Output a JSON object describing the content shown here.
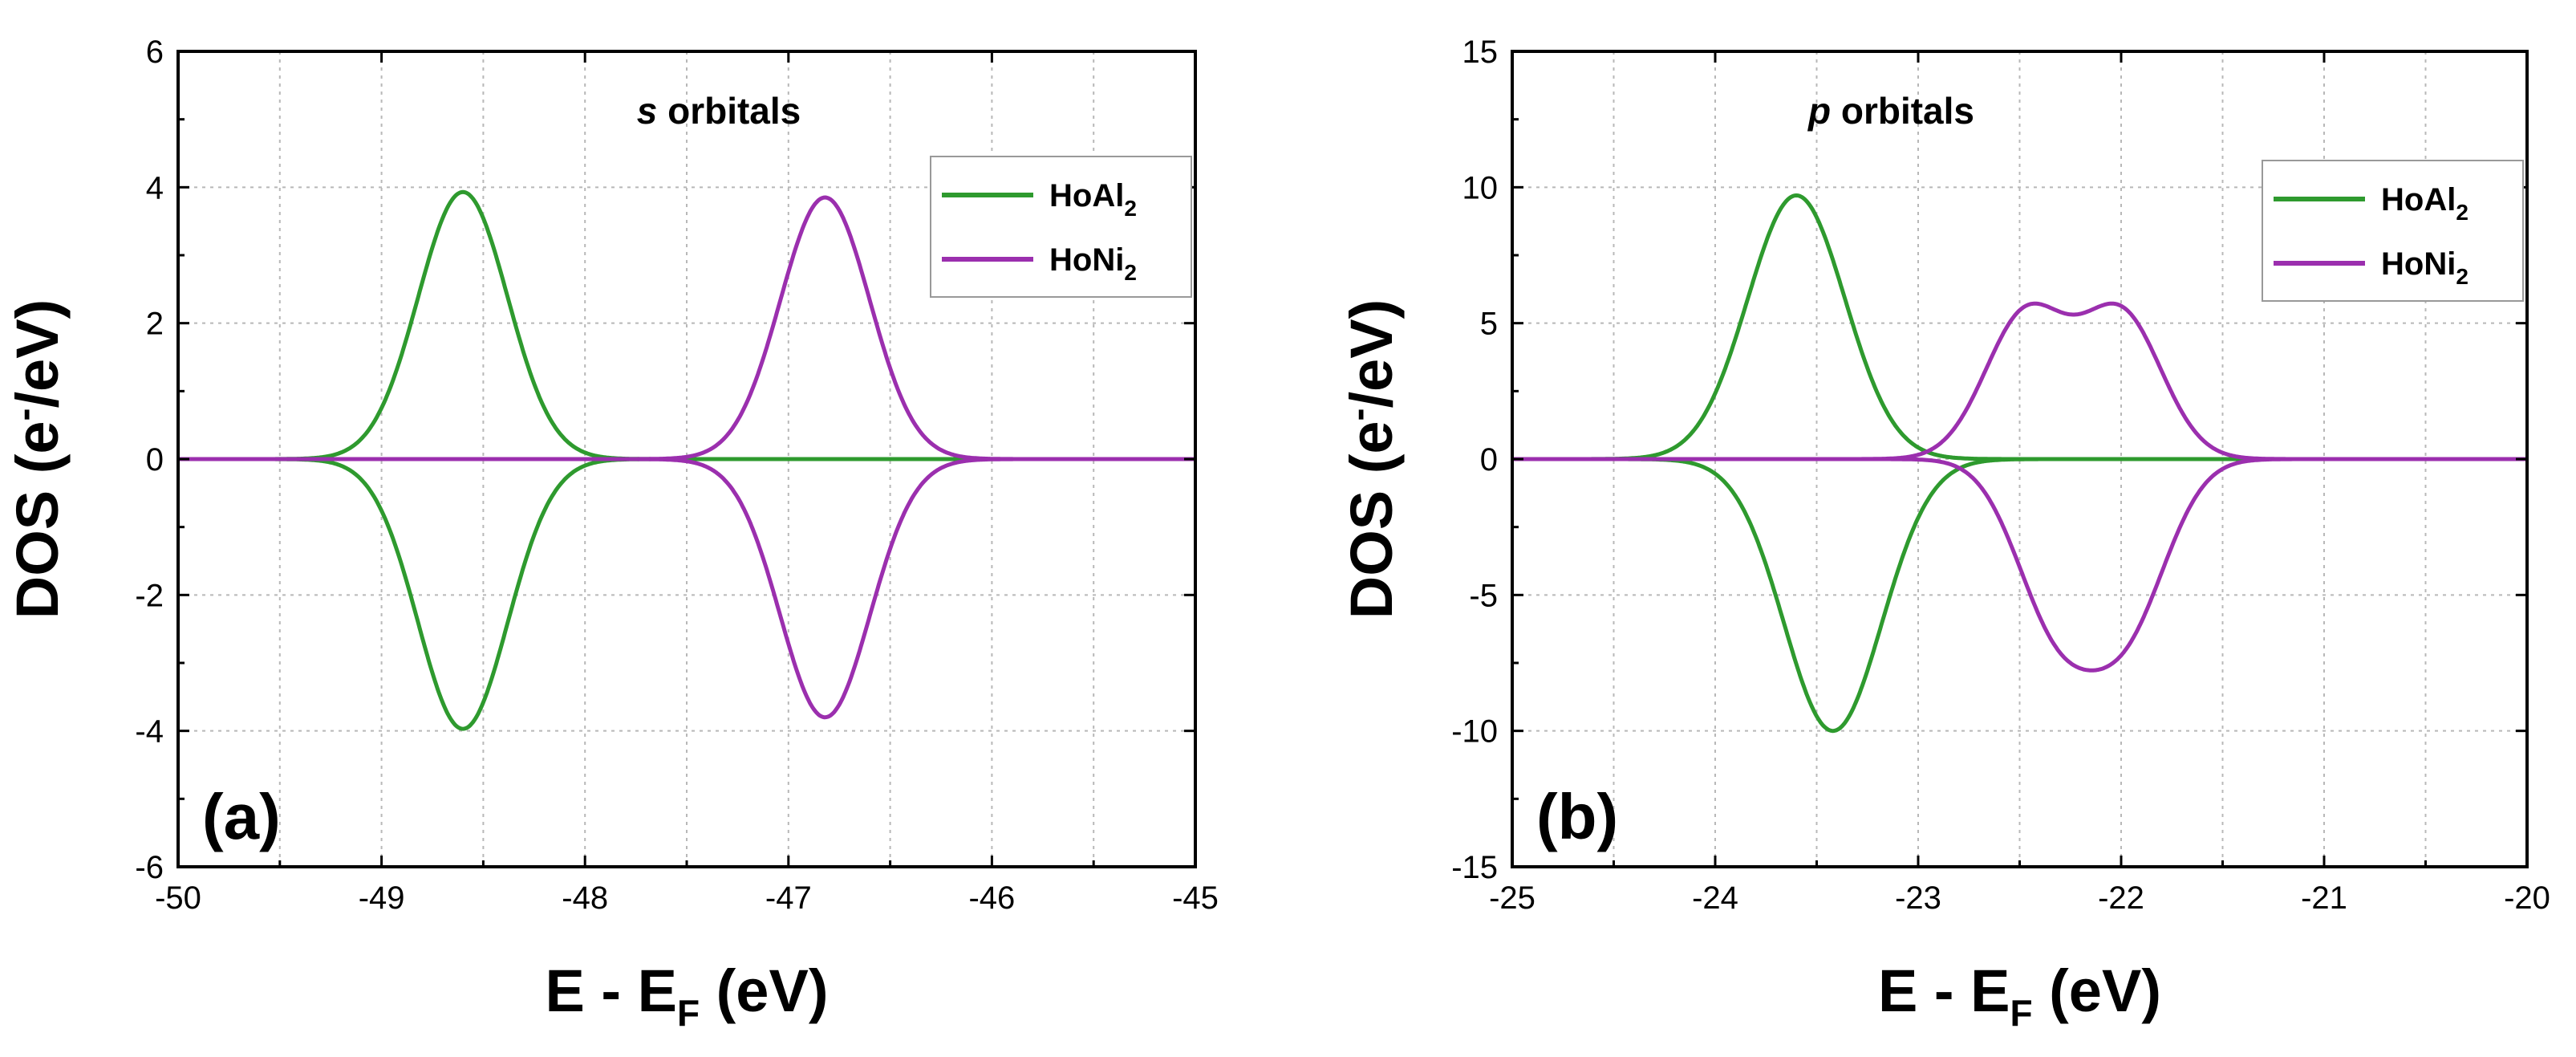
{
  "chart_data": [
    {
      "type": "line",
      "panel_label": "(a)",
      "title_italic": "s",
      "title_rest": " orbitals",
      "xlabel": "E - E",
      "xlabel_sub": "F",
      "xlabel_suffix": " (eV)",
      "ylabel": "DOS (e",
      "ylabel_sup": "-",
      "ylabel_suffix": "/eV)",
      "xlim": [
        -50,
        -45
      ],
      "ylim": [
        -6,
        6
      ],
      "xticks": [
        -50,
        -49,
        -48,
        -47,
        -46,
        -45
      ],
      "yticks": [
        -6,
        -4,
        -2,
        0,
        2,
        4,
        6
      ],
      "grid": true,
      "legend_position": "top-right",
      "series": [
        {
          "name": "HoAl",
          "name_sub": "2",
          "color": "#2e9a2e",
          "peaks_up": [
            {
              "center": -48.6,
              "height": 3.93,
              "width": 0.22
            }
          ],
          "peaks_down": [
            {
              "center": -48.6,
              "height": -3.97,
              "width": 0.22
            }
          ]
        },
        {
          "name": "HoNi",
          "name_sub": "2",
          "color": "#9b2fae",
          "peaks_up": [
            {
              "center": -46.82,
              "height": 3.85,
              "width": 0.22
            }
          ],
          "peaks_down": [
            {
              "center": -46.82,
              "height": -3.8,
              "width": 0.22
            }
          ]
        }
      ]
    },
    {
      "type": "line",
      "panel_label": "(b)",
      "title_italic": "p",
      "title_rest": " orbitals",
      "xlabel": "E - E",
      "xlabel_sub": "F",
      "xlabel_suffix": " (eV)",
      "ylabel": "DOS (e",
      "ylabel_sup": "-",
      "ylabel_suffix": "/eV)",
      "xlim": [
        -25,
        -20
      ],
      "ylim": [
        -15,
        15
      ],
      "xticks": [
        -25,
        -24,
        -23,
        -22,
        -21,
        -20
      ],
      "yticks": [
        -15,
        -10,
        -5,
        0,
        5,
        10,
        15
      ],
      "grid": true,
      "legend_position": "top-right",
      "series": [
        {
          "name": "HoAl",
          "name_sub": "2",
          "color": "#2e9a2e",
          "peaks_up": [
            {
              "center": -23.6,
              "height": 9.7,
              "width": 0.24
            }
          ],
          "peaks_down": [
            {
              "center": -23.42,
              "height": -10.0,
              "width": 0.24
            }
          ]
        },
        {
          "name": "HoNi",
          "name_sub": "2",
          "color": "#9b2fae",
          "peaks_up": [
            {
              "center": -22.47,
              "height": 5.3,
              "width": 0.2
            },
            {
              "center": -22.0,
              "height": 5.3,
              "width": 0.2
            }
          ],
          "peaks_down": [
            {
              "center": -22.32,
              "height": -5.7,
              "width": 0.2
            },
            {
              "center": -21.97,
              "height": -5.7,
              "width": 0.2
            }
          ]
        }
      ]
    }
  ]
}
